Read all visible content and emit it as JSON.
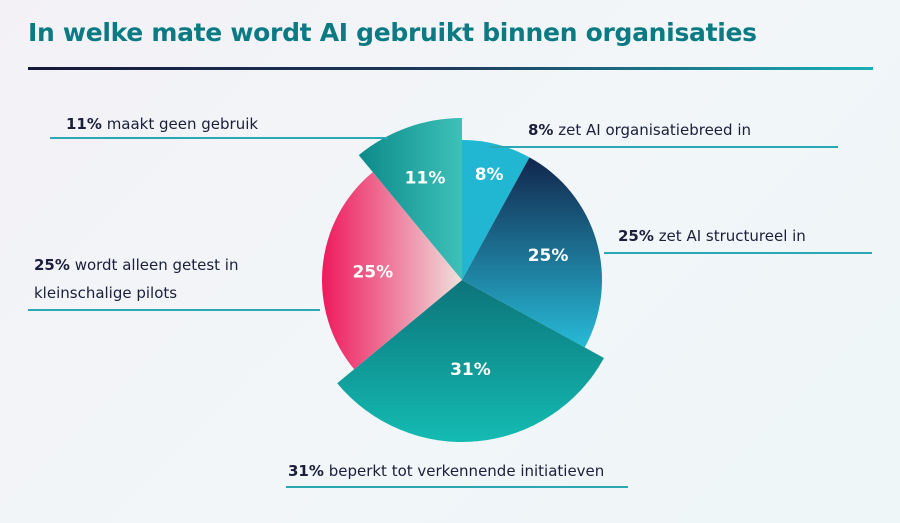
{
  "title": "In welke mate wordt AI gebruikt binnen organisaties",
  "chart_data": {
    "type": "pie",
    "title": "In welke mate wordt AI gebruikt binnen organisaties",
    "slices": [
      {
        "value": 8,
        "label": "8%",
        "pct": "8%",
        "text": "zet AI organisatiebreed in",
        "exploded": false,
        "colors": [
          "#21b7d3",
          "#21b7d3"
        ]
      },
      {
        "value": 25,
        "label": "25%",
        "pct": "25%",
        "text": "zet AI structureel in",
        "exploded": false,
        "colors": [
          "#12264d",
          "#27bbd7"
        ]
      },
      {
        "value": 31,
        "label": "31%",
        "pct": "31%",
        "text": "beperkt tot verkennende initiatieven",
        "exploded": true,
        "colors": [
          "#0c747a",
          "#14bbb2"
        ]
      },
      {
        "value": 25,
        "label": "25%",
        "pct": "25%",
        "text": "wordt alleen getest in kleinschalige pilots",
        "exploded": false,
        "colors": [
          "#ee1a5e",
          "#efe0dc"
        ]
      },
      {
        "value": 11,
        "label": "11%",
        "pct": "11%",
        "text": "maakt geen gebruik",
        "exploded": true,
        "colors": [
          "#0c8a8a",
          "#3ec1b9"
        ]
      }
    ]
  }
}
